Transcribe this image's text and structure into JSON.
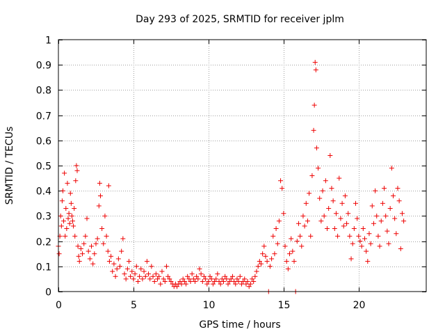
{
  "chart_data": {
    "type": "scatter",
    "title": "Day 293 of 2025, SRMTID for receiver jplm",
    "xlabel": "GPS time / hours",
    "ylabel": "SRMTID / TECUs",
    "xlim": [
      0,
      24.5
    ],
    "ylim": [
      0,
      1
    ],
    "xticks": [
      0,
      5,
      10,
      15,
      20
    ],
    "yticks": [
      0,
      0.1,
      0.2,
      0.3,
      0.4,
      0.5,
      0.6,
      0.7,
      0.8,
      0.9,
      1
    ],
    "xtick_labels": [
      "0",
      "5",
      "10",
      "15",
      "20"
    ],
    "ytick_labels": [
      "0",
      "0.1",
      "0.2",
      "0.3",
      "0.4",
      "0.5",
      "0.6",
      "0.7",
      "0.8",
      "0.9",
      "1"
    ],
    "grid": true,
    "marker": "+",
    "marker_color": "#ee0000",
    "series": [
      {
        "name": "SRMTID",
        "points": [
          [
            0.0,
            0.18
          ],
          [
            0.05,
            0.15
          ],
          [
            0.1,
            0.22
          ],
          [
            0.15,
            0.3
          ],
          [
            0.2,
            0.26
          ],
          [
            0.25,
            0.36
          ],
          [
            0.3,
            0.4
          ],
          [
            0.35,
            0.28
          ],
          [
            0.4,
            0.47
          ],
          [
            0.45,
            0.22
          ],
          [
            0.5,
            0.33
          ],
          [
            0.55,
            0.25
          ],
          [
            0.6,
            0.43
          ],
          [
            0.65,
            0.29
          ],
          [
            0.7,
            0.31
          ],
          [
            0.75,
            0.27
          ],
          [
            0.8,
            0.39
          ],
          [
            0.85,
            0.35
          ],
          [
            0.9,
            0.3
          ],
          [
            0.95,
            0.28
          ],
          [
            1.0,
            0.26
          ],
          [
            1.05,
            0.33
          ],
          [
            1.1,
            0.22
          ],
          [
            1.15,
            0.44
          ],
          [
            1.2,
            0.5
          ],
          [
            1.25,
            0.48
          ],
          [
            1.3,
            0.18
          ],
          [
            1.35,
            0.14
          ],
          [
            1.4,
            0.12
          ],
          [
            1.5,
            0.17
          ],
          [
            1.6,
            0.15
          ],
          [
            1.7,
            0.19
          ],
          [
            1.8,
            0.22
          ],
          [
            1.9,
            0.29
          ],
          [
            2.0,
            0.16
          ],
          [
            2.1,
            0.13
          ],
          [
            2.2,
            0.18
          ],
          [
            2.3,
            0.11
          ],
          [
            2.4,
            0.15
          ],
          [
            2.5,
            0.19
          ],
          [
            2.6,
            0.21
          ],
          [
            2.7,
            0.34
          ],
          [
            2.75,
            0.43
          ],
          [
            2.8,
            0.38
          ],
          [
            2.9,
            0.25
          ],
          [
            3.0,
            0.19
          ],
          [
            3.1,
            0.3
          ],
          [
            3.2,
            0.22
          ],
          [
            3.3,
            0.16
          ],
          [
            3.35,
            0.42
          ],
          [
            3.4,
            0.12
          ],
          [
            3.5,
            0.14
          ],
          [
            3.6,
            0.08
          ],
          [
            3.7,
            0.11
          ],
          [
            3.8,
            0.06
          ],
          [
            3.9,
            0.09
          ],
          [
            4.0,
            0.13
          ],
          [
            4.1,
            0.1
          ],
          [
            4.2,
            0.16
          ],
          [
            4.3,
            0.21
          ],
          [
            4.4,
            0.07
          ],
          [
            4.5,
            0.05
          ],
          [
            4.6,
            0.09
          ],
          [
            4.7,
            0.12
          ],
          [
            4.8,
            0.06
          ],
          [
            4.9,
            0.08
          ],
          [
            5.0,
            0.05
          ],
          [
            5.1,
            0.07
          ],
          [
            5.2,
            0.1
          ],
          [
            5.3,
            0.04
          ],
          [
            5.4,
            0.06
          ],
          [
            5.5,
            0.09
          ],
          [
            5.6,
            0.05
          ],
          [
            5.7,
            0.08
          ],
          [
            5.8,
            0.06
          ],
          [
            5.9,
            0.12
          ],
          [
            6.0,
            0.07
          ],
          [
            6.1,
            0.05
          ],
          [
            6.2,
            0.1
          ],
          [
            6.3,
            0.06
          ],
          [
            6.4,
            0.04
          ],
          [
            6.5,
            0.07
          ],
          [
            6.6,
            0.05
          ],
          [
            6.7,
            0.06
          ],
          [
            6.8,
            0.03
          ],
          [
            6.9,
            0.08
          ],
          [
            7.0,
            0.05
          ],
          [
            7.1,
            0.04
          ],
          [
            7.2,
            0.1
          ],
          [
            7.3,
            0.06
          ],
          [
            7.4,
            0.05
          ],
          [
            7.5,
            0.04
          ],
          [
            7.6,
            0.03
          ],
          [
            7.7,
            0.02
          ],
          [
            7.8,
            0.03
          ],
          [
            7.9,
            0.02
          ],
          [
            8.0,
            0.03
          ],
          [
            8.1,
            0.04
          ],
          [
            8.2,
            0.03
          ],
          [
            8.3,
            0.05
          ],
          [
            8.4,
            0.04
          ],
          [
            8.5,
            0.03
          ],
          [
            8.6,
            0.06
          ],
          [
            8.7,
            0.05
          ],
          [
            8.8,
            0.04
          ],
          [
            8.9,
            0.07
          ],
          [
            9.0,
            0.05
          ],
          [
            9.1,
            0.04
          ],
          [
            9.2,
            0.06
          ],
          [
            9.3,
            0.05
          ],
          [
            9.4,
            0.09
          ],
          [
            9.5,
            0.07
          ],
          [
            9.6,
            0.04
          ],
          [
            9.7,
            0.06
          ],
          [
            9.8,
            0.05
          ],
          [
            9.9,
            0.03
          ],
          [
            10.0,
            0.04
          ],
          [
            10.1,
            0.06
          ],
          [
            10.2,
            0.05
          ],
          [
            10.3,
            0.03
          ],
          [
            10.4,
            0.04
          ],
          [
            10.5,
            0.05
          ],
          [
            10.6,
            0.07
          ],
          [
            10.7,
            0.04
          ],
          [
            10.8,
            0.03
          ],
          [
            10.9,
            0.05
          ],
          [
            11.0,
            0.04
          ],
          [
            11.1,
            0.06
          ],
          [
            11.2,
            0.05
          ],
          [
            11.3,
            0.03
          ],
          [
            11.4,
            0.04
          ],
          [
            11.5,
            0.05
          ],
          [
            11.6,
            0.06
          ],
          [
            11.7,
            0.04
          ],
          [
            11.8,
            0.03
          ],
          [
            11.9,
            0.05
          ],
          [
            12.0,
            0.04
          ],
          [
            12.1,
            0.06
          ],
          [
            12.2,
            0.03
          ],
          [
            12.3,
            0.04
          ],
          [
            12.4,
            0.05
          ],
          [
            12.5,
            0.03
          ],
          [
            12.6,
            0.04
          ],
          [
            12.7,
            0.02
          ],
          [
            12.8,
            0.03
          ],
          [
            12.9,
            0.05
          ],
          [
            13.0,
            0.04
          ],
          [
            13.1,
            0.06
          ],
          [
            13.2,
            0.08
          ],
          [
            13.3,
            0.1
          ],
          [
            13.4,
            0.12
          ],
          [
            13.5,
            0.11
          ],
          [
            13.6,
            0.15
          ],
          [
            13.7,
            0.18
          ],
          [
            13.8,
            0.14
          ],
          [
            13.9,
            0.12
          ],
          [
            14.0,
            0.0
          ],
          [
            14.1,
            0.1
          ],
          [
            14.2,
            0.13
          ],
          [
            14.3,
            0.22
          ],
          [
            14.4,
            0.15
          ],
          [
            14.5,
            0.25
          ],
          [
            14.6,
            0.19
          ],
          [
            14.7,
            0.28
          ],
          [
            14.8,
            0.44
          ],
          [
            14.9,
            0.41
          ],
          [
            15.0,
            0.31
          ],
          [
            15.1,
            0.18
          ],
          [
            15.2,
            0.12
          ],
          [
            15.3,
            0.09
          ],
          [
            15.4,
            0.15
          ],
          [
            15.5,
            0.21
          ],
          [
            15.6,
            0.16
          ],
          [
            15.7,
            0.12
          ],
          [
            15.8,
            0.0
          ],
          [
            15.9,
            0.2
          ],
          [
            16.0,
            0.27
          ],
          [
            16.1,
            0.22
          ],
          [
            16.2,
            0.18
          ],
          [
            16.3,
            0.3
          ],
          [
            16.4,
            0.26
          ],
          [
            16.5,
            0.35
          ],
          [
            16.6,
            0.28
          ],
          [
            16.7,
            0.39
          ],
          [
            16.8,
            0.22
          ],
          [
            16.9,
            0.46
          ],
          [
            17.0,
            0.64
          ],
          [
            17.05,
            0.74
          ],
          [
            17.1,
            0.91
          ],
          [
            17.15,
            0.88
          ],
          [
            17.2,
            0.57
          ],
          [
            17.3,
            0.49
          ],
          [
            17.4,
            0.37
          ],
          [
            17.5,
            0.28
          ],
          [
            17.6,
            0.4
          ],
          [
            17.7,
            0.3
          ],
          [
            17.8,
            0.44
          ],
          [
            17.9,
            0.25
          ],
          [
            18.0,
            0.33
          ],
          [
            18.1,
            0.54
          ],
          [
            18.2,
            0.41
          ],
          [
            18.3,
            0.36
          ],
          [
            18.4,
            0.25
          ],
          [
            18.5,
            0.31
          ],
          [
            18.6,
            0.22
          ],
          [
            18.7,
            0.45
          ],
          [
            18.8,
            0.29
          ],
          [
            18.9,
            0.35
          ],
          [
            19.0,
            0.26
          ],
          [
            19.1,
            0.38
          ],
          [
            19.2,
            0.27
          ],
          [
            19.3,
            0.31
          ],
          [
            19.4,
            0.22
          ],
          [
            19.5,
            0.13
          ],
          [
            19.6,
            0.19
          ],
          [
            19.7,
            0.25
          ],
          [
            19.8,
            0.35
          ],
          [
            19.9,
            0.29
          ],
          [
            20.0,
            0.22
          ],
          [
            20.1,
            0.2
          ],
          [
            20.2,
            0.18
          ],
          [
            20.3,
            0.25
          ],
          [
            20.4,
            0.21
          ],
          [
            20.5,
            0.16
          ],
          [
            20.6,
            0.12
          ],
          [
            20.7,
            0.23
          ],
          [
            20.8,
            0.19
          ],
          [
            20.9,
            0.34
          ],
          [
            21.0,
            0.27
          ],
          [
            21.1,
            0.4
          ],
          [
            21.2,
            0.3
          ],
          [
            21.3,
            0.22
          ],
          [
            21.4,
            0.18
          ],
          [
            21.5,
            0.28
          ],
          [
            21.6,
            0.35
          ],
          [
            21.7,
            0.41
          ],
          [
            21.8,
            0.3
          ],
          [
            21.9,
            0.24
          ],
          [
            22.0,
            0.19
          ],
          [
            22.1,
            0.33
          ],
          [
            22.2,
            0.49
          ],
          [
            22.3,
            0.38
          ],
          [
            22.4,
            0.29
          ],
          [
            22.5,
            0.23
          ],
          [
            22.6,
            0.41
          ],
          [
            22.7,
            0.36
          ],
          [
            22.8,
            0.17
          ],
          [
            22.9,
            0.31
          ],
          [
            23.0,
            0.28
          ]
        ]
      }
    ]
  }
}
